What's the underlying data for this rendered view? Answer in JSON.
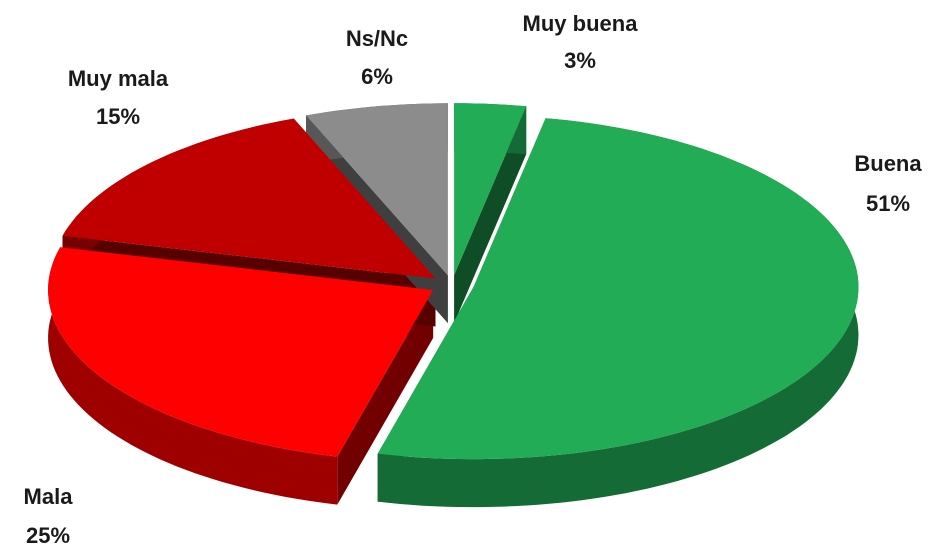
{
  "chart_data": {
    "type": "pie",
    "categories": [
      "Muy buena",
      "Buena",
      "Mala",
      "Muy mala",
      "Ns/Nc"
    ],
    "values": [
      3,
      51,
      25,
      15,
      6
    ],
    "value_labels": [
      "3%",
      "51%",
      "25%",
      "15%",
      "6%"
    ],
    "colors": [
      "#22ac55",
      "#22ac55",
      "#ff0000",
      "#c00000",
      "#8c8c8c"
    ]
  }
}
